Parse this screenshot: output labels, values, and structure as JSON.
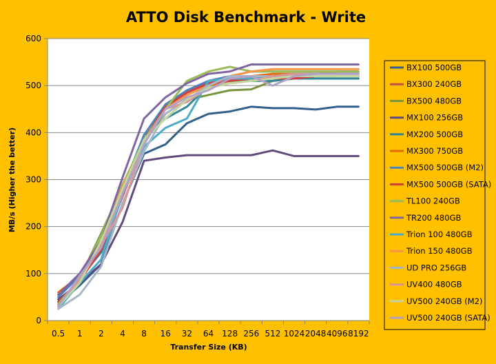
{
  "chart_data": {
    "type": "line",
    "title": "ATTO Disk Benchmark - Write",
    "xlabel": "Transfer Size (KB)",
    "ylabel": "MB/s (Higher the better)",
    "ylim": [
      0,
      600
    ],
    "yticks": [
      0,
      100,
      200,
      300,
      400,
      500,
      600
    ],
    "grid": "horizontal",
    "legend_position": "right",
    "categories": [
      "0.5",
      "1",
      "2",
      "4",
      "8",
      "16",
      "32",
      "64",
      "128",
      "256",
      "512",
      "1024",
      "2048",
      "4096",
      "8192"
    ],
    "series": [
      {
        "name": "BX100 500GB",
        "color": "#2f5f8a",
        "values": [
          35,
          75,
          120,
          250,
          355,
          375,
          420,
          440,
          445,
          455,
          452,
          452,
          449,
          455,
          455
        ]
      },
      {
        "name": "BX300 240GB",
        "color": "#c0504d",
        "values": [
          40,
          85,
          150,
          265,
          380,
          455,
          490,
          505,
          515,
          515,
          520,
          520,
          520,
          520,
          520
        ]
      },
      {
        "name": "BX500 480GB",
        "color": "#77933c",
        "values": [
          30,
          90,
          185,
          285,
          380,
          440,
          470,
          480,
          490,
          492,
          510,
          515,
          515,
          515,
          515
        ]
      },
      {
        "name": "MX100 256GB",
        "color": "#604a7b",
        "values": [
          45,
          80,
          120,
          210,
          340,
          347,
          352,
          352,
          352,
          352,
          362,
          350,
          350,
          350,
          350
        ]
      },
      {
        "name": "MX200 500GB",
        "color": "#31859c",
        "values": [
          30,
          90,
          145,
          270,
          395,
          430,
          455,
          500,
          510,
          510,
          510,
          515,
          515,
          515,
          515
        ]
      },
      {
        "name": "MX300 750GB",
        "color": "#e46c0a",
        "values": [
          60,
          95,
          160,
          280,
          385,
          455,
          490,
          500,
          510,
          520,
          525,
          525,
          525,
          530,
          530
        ]
      },
      {
        "name": "MX500 500GB (M2)",
        "color": "#4f81bd",
        "values": [
          50,
          95,
          165,
          280,
          395,
          460,
          490,
          510,
          520,
          530,
          530,
          530,
          530,
          530,
          530
        ]
      },
      {
        "name": "MX500 500GB (SATA)",
        "color": "#d0413d",
        "values": [
          40,
          85,
          150,
          270,
          385,
          455,
          485,
          505,
          510,
          515,
          515,
          515,
          520,
          520,
          520
        ]
      },
      {
        "name": "TL100 240GB",
        "color": "#9bbb59",
        "values": [
          35,
          90,
          180,
          290,
          385,
          450,
          510,
          530,
          540,
          530,
          530,
          530,
          530,
          530,
          530
        ]
      },
      {
        "name": "TR200 480GB",
        "color": "#8064a2",
        "values": [
          55,
          100,
          170,
          305,
          430,
          475,
          505,
          525,
          530,
          545,
          545,
          545,
          545,
          545,
          545
        ]
      },
      {
        "name": "Trion 100 480GB",
        "color": "#4bacc6",
        "values": [
          25,
          80,
          130,
          270,
          370,
          410,
          430,
          510,
          515,
          515,
          520,
          525,
          525,
          525,
          525
        ]
      },
      {
        "name": "Trion 150 480GB",
        "color": "#f79646",
        "values": [
          30,
          85,
          165,
          285,
          380,
          450,
          480,
          500,
          520,
          530,
          535,
          535,
          535,
          535,
          535
        ]
      },
      {
        "name": "UD PRO 256GB",
        "color": "#a5b6ca",
        "values": [
          25,
          55,
          115,
          250,
          360,
          440,
          470,
          500,
          520,
          520,
          520,
          520,
          520,
          520,
          520
        ]
      },
      {
        "name": "UV400 480GB",
        "color": "#d99694",
        "values": [
          30,
          85,
          160,
          240,
          380,
          450,
          465,
          495,
          505,
          510,
          520,
          525,
          525,
          525,
          525
        ]
      },
      {
        "name": "UV500 240GB (M2)",
        "color": "#c3d69b",
        "values": [
          30,
          80,
          170,
          280,
          385,
          430,
          470,
          495,
          505,
          510,
          515,
          520,
          520,
          520,
          520
        ]
      },
      {
        "name": "UV500 240GB (SATA)",
        "color": "#b3a2c7",
        "values": [
          30,
          95,
          155,
          270,
          375,
          450,
          475,
          490,
          515,
          520,
          500,
          520,
          525,
          525,
          525
        ]
      }
    ]
  }
}
